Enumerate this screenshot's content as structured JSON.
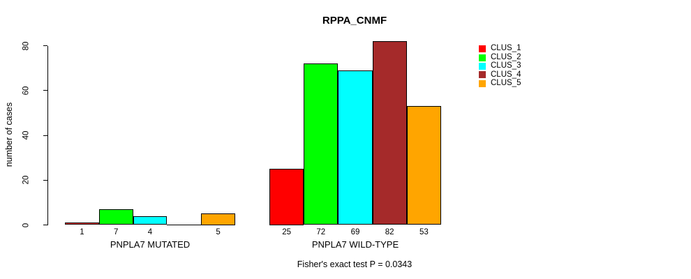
{
  "title": "RPPA_CNMF",
  "y_axis": {
    "label": "number of cases"
  },
  "footer": "Fisher's exact test P = 0.0343",
  "legend": {
    "entries": [
      {
        "label": "CLUS_1",
        "color": "#FF0000"
      },
      {
        "label": "CLUS_2",
        "color": "#00FF00"
      },
      {
        "label": "CLUS_3",
        "color": "#00FFFF"
      },
      {
        "label": "CLUS_4",
        "color": "#A52A2A"
      },
      {
        "label": "CLUS_5",
        "color": "#FFA500"
      }
    ]
  },
  "chart_data": {
    "type": "bar",
    "title": "RPPA_CNMF",
    "ylabel": "number of cases",
    "xlabel": "",
    "ylim": [
      0,
      80
    ],
    "yticks": [
      0,
      20,
      40,
      60,
      80
    ],
    "grid": false,
    "legend_position": "right",
    "categories": [
      "PNPLA7 MUTATED",
      "PNPLA7 WILD-TYPE"
    ],
    "series": [
      {
        "name": "CLUS_1",
        "color": "#FF0000",
        "values": [
          1,
          25
        ]
      },
      {
        "name": "CLUS_2",
        "color": "#00FF00",
        "values": [
          7,
          72
        ]
      },
      {
        "name": "CLUS_3",
        "color": "#00FFFF",
        "values": [
          4,
          69
        ]
      },
      {
        "name": "CLUS_4",
        "color": "#A52A2A",
        "values": [
          0,
          82
        ]
      },
      {
        "name": "CLUS_5",
        "color": "#FFA500",
        "values": [
          5,
          53
        ]
      }
    ],
    "bar_value_labels": [
      [
        "1",
        "7",
        "4",
        "",
        "5"
      ],
      [
        "25",
        "72",
        "69",
        "82",
        "53"
      ]
    ],
    "annotation": "Fisher's exact test P = 0.0343"
  }
}
